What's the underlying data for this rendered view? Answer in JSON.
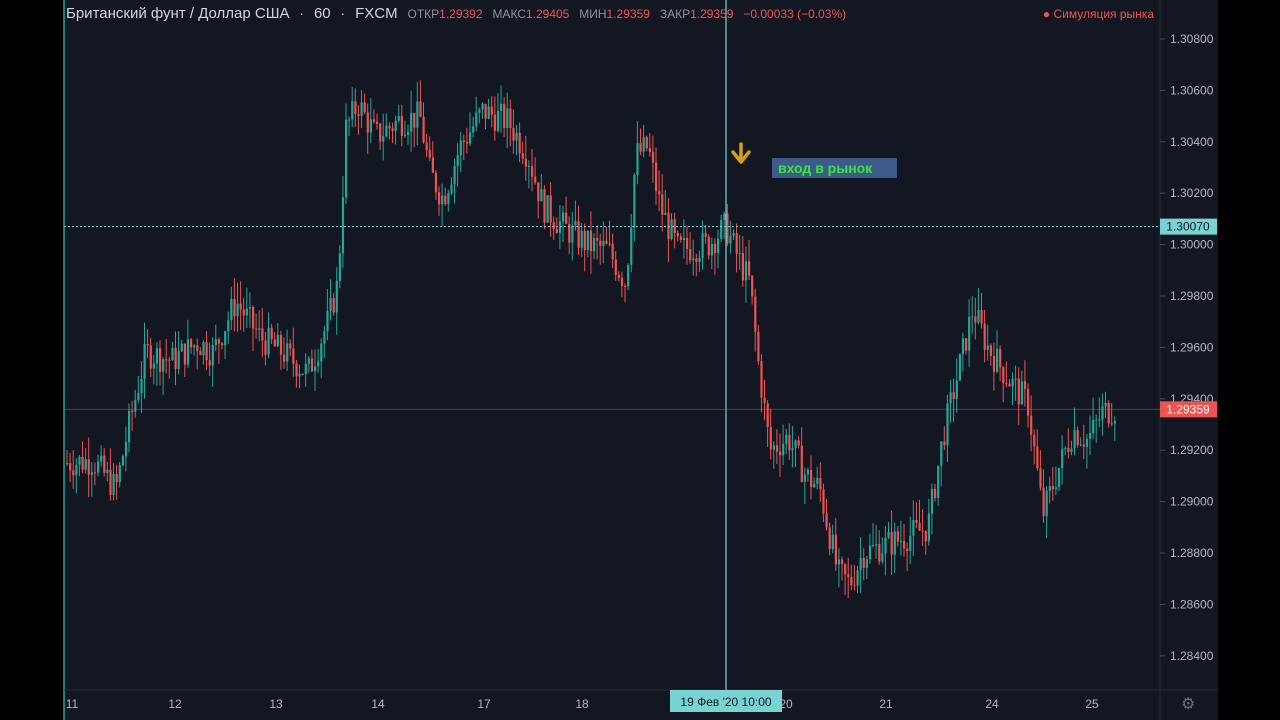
{
  "header": {
    "symbol": "Британский фунт / Доллар США",
    "interval": "60",
    "exchange": "FXCM",
    "open_label": "ОТКР",
    "open_value": "1.29392",
    "high_label": "МАКС",
    "high_value": "1.29405",
    "low_label": "МИН",
    "low_value": "1.29359",
    "close_label": "ЗАКР",
    "close_value": "1.29359",
    "change": "−0.00033 (−0.03%)"
  },
  "market_status": "Симуляция рынка",
  "colors": {
    "up": "#26a69a",
    "down": "#ef5350",
    "crosshair": "#7ad3d3",
    "annotation_bg": "#3d5a8a",
    "annotation_text": "#39e639",
    "arrow": "#d4a017",
    "background": "#131722"
  },
  "icons": {
    "settings": "gear-icon",
    "entry_marker": "arrow-down-icon"
  },
  "chart_data": {
    "type": "candlestick",
    "title": "",
    "y_ticks": [
      "1.30800",
      "1.30600",
      "1.30400",
      "1.30200",
      "1.30000",
      "1.29800",
      "1.29600",
      "1.29400",
      "1.29200",
      "1.29000",
      "1.28800",
      "1.28600",
      "1.28400"
    ],
    "ylim": [
      1.2826,
      1.3092
    ],
    "x_ticks": [
      "11",
      "12",
      "13",
      "14",
      "17",
      "18",
      "20",
      "21",
      "24",
      "25"
    ],
    "crosshair": {
      "price_label": "1.30070",
      "time_label": "19 Фев '20   10:00",
      "price": 1.3007
    },
    "last_price": {
      "label": "1.29359",
      "price": 1.29359
    },
    "annotation": {
      "text": "вход в рынок"
    },
    "grid": false
  }
}
